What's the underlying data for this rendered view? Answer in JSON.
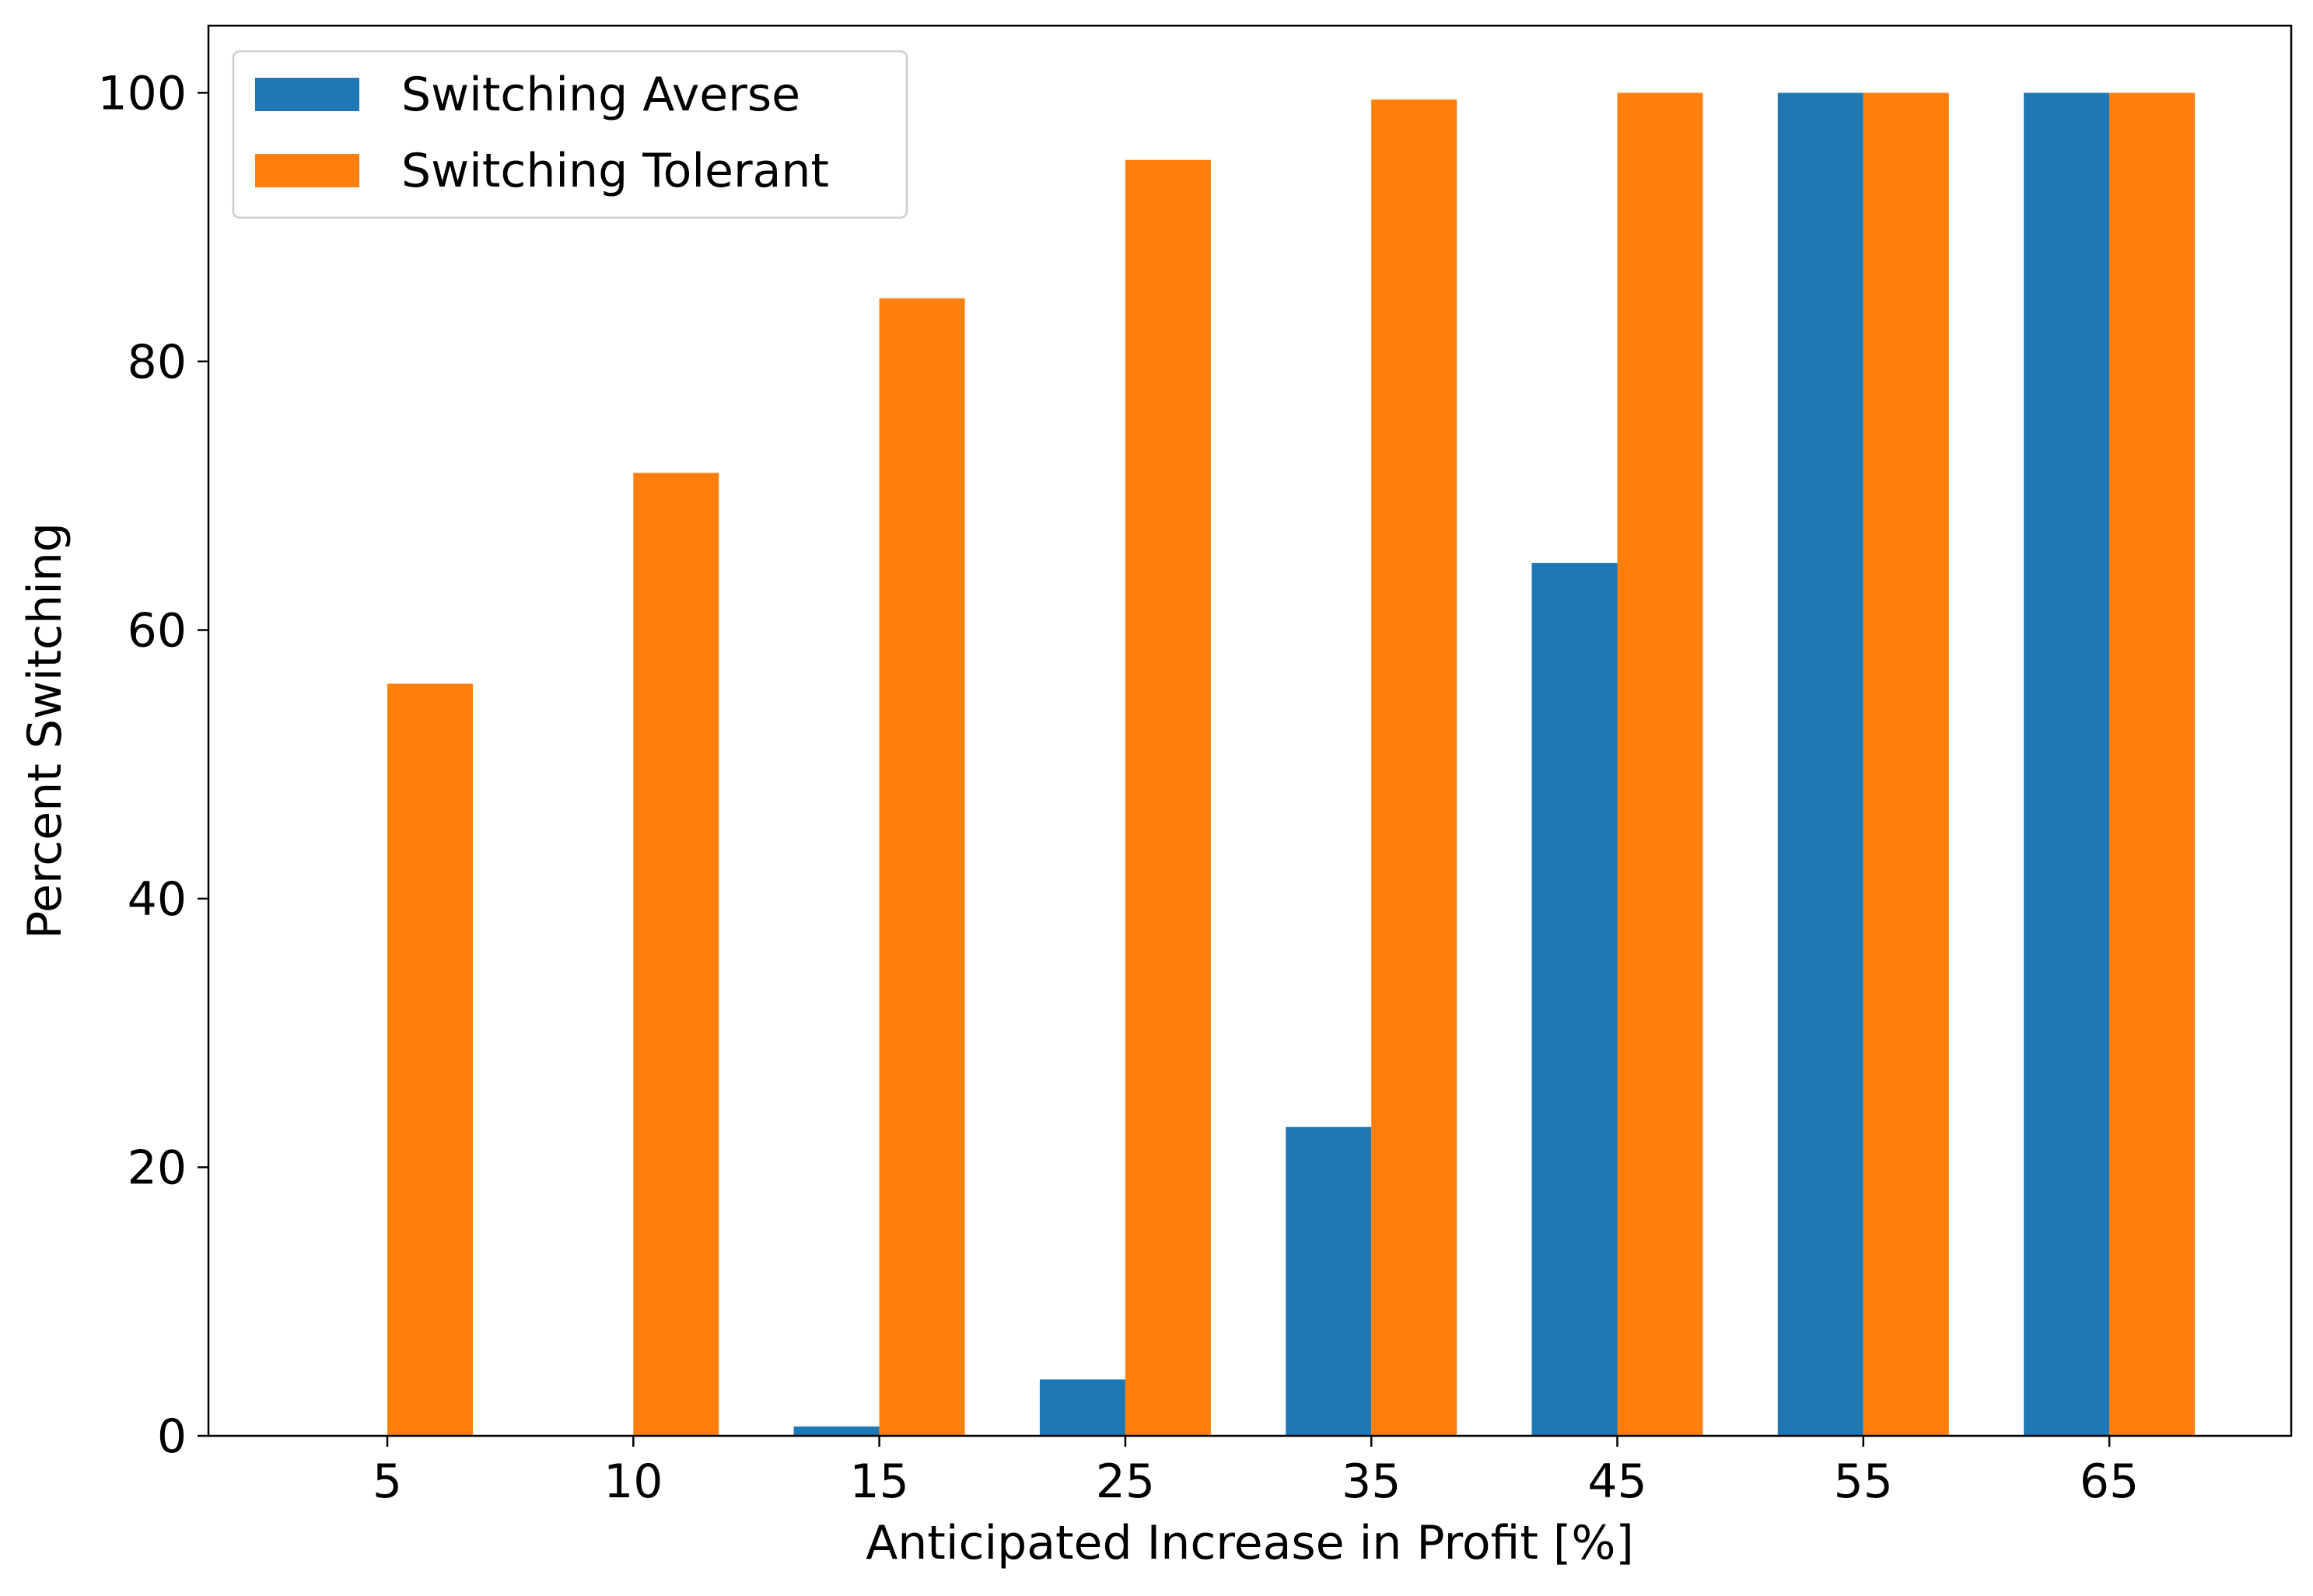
{
  "chart_data": {
    "type": "bar",
    "title": "",
    "xlabel": "Anticipated Increase in Profit [%]",
    "ylabel": "Percent Switching",
    "categories": [
      "5",
      "10",
      "15",
      "25",
      "35",
      "45",
      "55",
      "65"
    ],
    "series": [
      {
        "name": "Switching Averse",
        "color": "#1f77b4",
        "values": [
          0,
          0,
          0.7,
          4.2,
          23,
          65,
          100,
          100
        ]
      },
      {
        "name": "Switching Tolerant",
        "color": "#ff7f0e",
        "values": [
          56,
          71.7,
          84.7,
          95,
          99.5,
          100,
          100,
          100
        ]
      }
    ],
    "ylim": [
      0,
      105
    ],
    "yticks": [
      0,
      20,
      40,
      60,
      80,
      100
    ],
    "grid": false,
    "legend_position": "top-left"
  }
}
